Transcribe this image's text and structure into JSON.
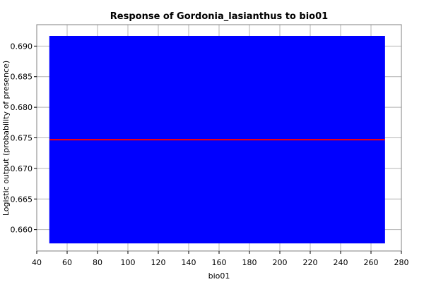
{
  "chart_data": {
    "type": "area",
    "title": "Response of Gordonia_lasianthus to bio01",
    "xlabel": "bio01",
    "ylabel": "Logistic output (probability of presence)",
    "xlim": [
      40,
      280
    ],
    "ylim": [
      0.6565,
      0.6935
    ],
    "x_ticks": [
      40,
      60,
      80,
      100,
      120,
      140,
      160,
      180,
      200,
      220,
      240,
      260,
      280
    ],
    "y_ticks": [
      0.66,
      0.665,
      0.67,
      0.675,
      0.68,
      0.685,
      0.69
    ],
    "grid": true,
    "series": [
      {
        "role": "mean response",
        "color": "#ff0000",
        "x": [
          48.5,
          269
        ],
        "y": [
          0.6747,
          0.6747
        ]
      },
      {
        "role": "range band (mean +/- one stddev)",
        "color": "#0000ff",
        "x": [
          48.5,
          269
        ],
        "upper": [
          0.6916,
          0.6916
        ],
        "lower": [
          0.6578,
          0.6578
        ]
      }
    ]
  }
}
